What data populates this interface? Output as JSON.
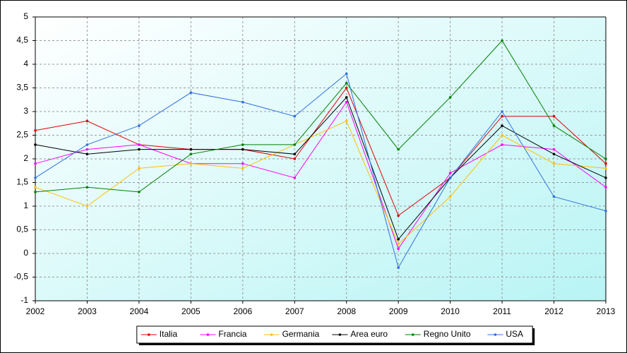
{
  "chart_data": {
    "type": "line",
    "categories": [
      "2002",
      "2003",
      "2004",
      "2005",
      "2006",
      "2007",
      "2008",
      "2009",
      "2010",
      "2011",
      "2012",
      "2013"
    ],
    "series": [
      {
        "name": "Italia",
        "color": "#e00000",
        "values": [
          2.6,
          2.8,
          2.3,
          2.2,
          2.2,
          2.0,
          3.5,
          0.8,
          1.6,
          2.9,
          2.9,
          1.9
        ]
      },
      {
        "name": "Francia",
        "color": "#ff00ff",
        "values": [
          1.9,
          2.2,
          2.3,
          1.9,
          1.9,
          1.6,
          3.2,
          0.1,
          1.7,
          2.3,
          2.2,
          1.4
        ]
      },
      {
        "name": "Germania",
        "color": "#ffc000",
        "values": [
          1.4,
          1.0,
          1.8,
          1.9,
          1.8,
          2.3,
          2.8,
          0.2,
          1.2,
          2.5,
          1.9,
          1.8
        ]
      },
      {
        "name": "Area euro",
        "color": "#000000",
        "values": [
          2.3,
          2.1,
          2.2,
          2.2,
          2.2,
          2.1,
          3.3,
          0.3,
          1.6,
          2.7,
          2.1,
          1.6
        ]
      },
      {
        "name": "Regno Unito",
        "color": "#008000",
        "values": [
          1.3,
          1.4,
          1.3,
          2.1,
          2.3,
          2.3,
          3.6,
          2.2,
          3.3,
          4.5,
          2.7,
          2.0
        ]
      },
      {
        "name": "USA",
        "color": "#3070e0",
        "values": [
          1.6,
          2.3,
          2.7,
          3.4,
          3.2,
          2.9,
          3.8,
          -0.3,
          1.6,
          3.0,
          1.2,
          0.9
        ]
      }
    ],
    "ylim": [
      -1,
      5
    ],
    "yticks": [
      -1,
      {
        "value": -0.5,
        "label": "-0,5"
      },
      0,
      {
        "value": 0.5,
        "label": "0,5"
      },
      1,
      {
        "value": 1.5,
        "label": "1,5"
      },
      2,
      {
        "value": 2.5,
        "label": "2,5"
      },
      3,
      {
        "value": 3.5,
        "label": "3,5"
      },
      4,
      {
        "value": 4.5,
        "label": "4,5"
      },
      5
    ],
    "grid": true,
    "legend": "bottom"
  }
}
